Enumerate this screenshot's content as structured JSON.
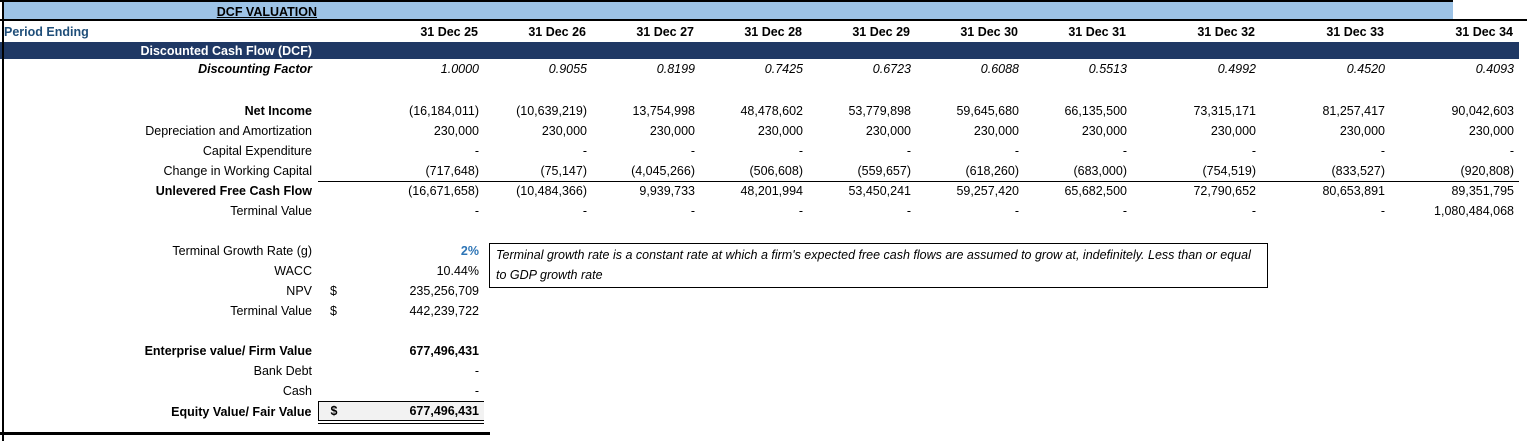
{
  "sheet": {
    "title": "DCF VALUATION",
    "period_label": "Period Ending",
    "dates": [
      "31 Dec 25",
      "31 Dec 26",
      "31 Dec 27",
      "31 Dec 28",
      "31 Dec 29",
      "31 Dec 30",
      "31 Dec 31",
      "31 Dec 32",
      "31 Dec 33",
      "31 Dec 34"
    ],
    "section_header": "Discounted Cash Flow (DCF)",
    "grid_rows": [
      {
        "label": "Discounting Factor",
        "style": "factor",
        "values": [
          "1.0000",
          "0.9055",
          "0.8199",
          "0.7425",
          "0.6723",
          "0.6088",
          "0.5513",
          "0.4992",
          "0.4520",
          "0.4093"
        ]
      },
      {
        "blank": true
      },
      {
        "label": "Net Income",
        "bold_label": true,
        "values": [
          "(16,184,011)",
          "(10,639,219)",
          "13,754,998",
          "48,478,602",
          "53,779,898",
          "59,645,680",
          "66,135,500",
          "73,315,171",
          "81,257,417",
          "90,042,603"
        ]
      },
      {
        "label": "Depreciation and Amortization",
        "values": [
          "230,000",
          "230,000",
          "230,000",
          "230,000",
          "230,000",
          "230,000",
          "230,000",
          "230,000",
          "230,000",
          "230,000"
        ]
      },
      {
        "label": "Capital Expenditure",
        "values": [
          "-",
          "-",
          "-",
          "-",
          "-",
          "-",
          "-",
          "-",
          "-",
          "-"
        ]
      },
      {
        "label": "Change in Working Capital",
        "underline": true,
        "values": [
          "(717,648)",
          "(75,147)",
          "(4,045,266)",
          "(506,608)",
          "(559,657)",
          "(618,260)",
          "(683,000)",
          "(754,519)",
          "(833,527)",
          "(920,808)"
        ]
      },
      {
        "label": "Unlevered Free Cash Flow",
        "bold_label": true,
        "values": [
          "(16,671,658)",
          "(10,484,366)",
          "9,939,733",
          "48,201,994",
          "53,450,241",
          "59,257,420",
          "65,682,500",
          "72,790,652",
          "80,653,891",
          "89,351,795"
        ]
      },
      {
        "label": "Terminal Value",
        "values": [
          "-",
          "-",
          "-",
          "-",
          "-",
          "-",
          "-",
          "-",
          "-",
          "1,080,484,068"
        ]
      }
    ],
    "summary_rows": [
      {
        "blank": true
      },
      {
        "label": "Terminal Growth Rate (g)",
        "value": "2%",
        "accent": true
      },
      {
        "label": "WACC",
        "value": "10.44%"
      },
      {
        "label": "NPV",
        "currency": "$",
        "value": "235,256,709"
      },
      {
        "label": "Terminal Value",
        "currency": "$",
        "value": "442,239,722"
      },
      {
        "blank": true
      },
      {
        "label": "Enterprise value/ Firm Value",
        "bold": true,
        "value": "677,496,431"
      },
      {
        "label": "Bank Debt",
        "value": "-"
      },
      {
        "label": "Cash",
        "value": "-"
      },
      {
        "label": "Equity Value/ Fair Value",
        "bold": true,
        "currency": "$",
        "value": "677,496,431",
        "total": true
      }
    ],
    "note": "Terminal growth rate is a constant rate at which a firm's expected free cash flows are assumed to grow at, indefinitely. Less than or equal to GDP growth rate",
    "colors": {
      "band_blue": "#9DC3E6",
      "navy": "#1F3864",
      "label_blue": "#1F4E79",
      "accent_blue": "#2E75B6",
      "total_fill": "#F2F2F2"
    }
  }
}
